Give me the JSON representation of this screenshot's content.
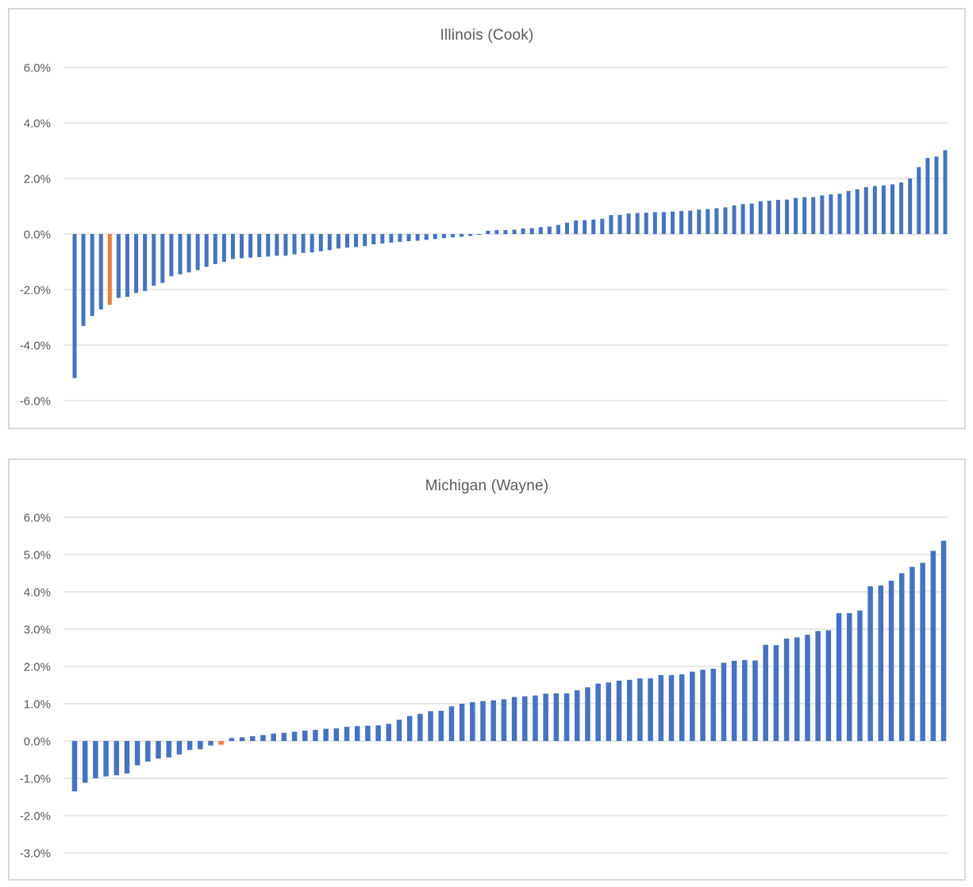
{
  "page": {
    "background_color": "#ffffff",
    "text_color": "#595959",
    "gridline_color": "#d9d9d9",
    "border_color": "#d9d9d9"
  },
  "chart_data": [
    {
      "type": "bar",
      "title": "Illinois (Cook)",
      "xlabel": "",
      "ylabel": "",
      "legend": false,
      "grid": true,
      "y_ticks": [
        "6.0%",
        "4.0%",
        "2.0%",
        "0.0%",
        "-2.0%",
        "-4.0%",
        "-6.0%"
      ],
      "ylim_pct": [
        -6.0,
        6.0
      ],
      "bar_color": "#4472C4",
      "highlight_color": "#ED7D31",
      "highlight_index": 4,
      "values_pct": [
        -5.19,
        -3.31,
        -2.95,
        -2.72,
        -2.55,
        -2.3,
        -2.26,
        -2.12,
        -2.05,
        -1.86,
        -1.76,
        -1.52,
        -1.45,
        -1.38,
        -1.3,
        -1.18,
        -1.08,
        -1.0,
        -0.9,
        -0.87,
        -0.85,
        -0.83,
        -0.81,
        -0.78,
        -0.78,
        -0.73,
        -0.68,
        -0.66,
        -0.62,
        -0.58,
        -0.52,
        -0.49,
        -0.47,
        -0.43,
        -0.37,
        -0.34,
        -0.31,
        -0.28,
        -0.26,
        -0.24,
        -0.21,
        -0.18,
        -0.15,
        -0.12,
        -0.1,
        -0.07,
        -0.03,
        0.12,
        0.14,
        0.14,
        0.16,
        0.2,
        0.21,
        0.25,
        0.27,
        0.33,
        0.41,
        0.49,
        0.5,
        0.52,
        0.55,
        0.68,
        0.69,
        0.74,
        0.76,
        0.77,
        0.79,
        0.79,
        0.81,
        0.83,
        0.84,
        0.88,
        0.9,
        0.93,
        0.96,
        1.03,
        1.08,
        1.1,
        1.18,
        1.2,
        1.23,
        1.24,
        1.3,
        1.33,
        1.33,
        1.39,
        1.43,
        1.45,
        1.55,
        1.61,
        1.69,
        1.73,
        1.75,
        1.79,
        1.86,
        2.0,
        2.41,
        2.74,
        2.79,
        3.02
      ]
    },
    {
      "type": "bar",
      "title": "Michigan (Wayne)",
      "xlabel": "",
      "ylabel": "",
      "legend": false,
      "grid": true,
      "y_ticks": [
        "6.0%",
        "5.0%",
        "4.0%",
        "3.0%",
        "2.0%",
        "1.0%",
        "0.0%",
        "-1.0%",
        "-2.0%",
        "-3.0%"
      ],
      "ylim_pct": [
        -3.0,
        6.0
      ],
      "bar_color": "#4472C4",
      "highlight_color": "#ED7D31",
      "highlight_index": 14,
      "values_pct": [
        -1.35,
        -1.12,
        -1.0,
        -0.95,
        -0.92,
        -0.87,
        -0.65,
        -0.55,
        -0.47,
        -0.44,
        -0.36,
        -0.24,
        -0.22,
        -0.12,
        -0.1,
        0.08,
        0.1,
        0.13,
        0.16,
        0.2,
        0.22,
        0.25,
        0.28,
        0.3,
        0.33,
        0.34,
        0.38,
        0.4,
        0.41,
        0.42,
        0.46,
        0.57,
        0.67,
        0.73,
        0.8,
        0.81,
        0.93,
        1.0,
        1.04,
        1.07,
        1.09,
        1.12,
        1.18,
        1.2,
        1.22,
        1.27,
        1.28,
        1.28,
        1.36,
        1.44,
        1.54,
        1.57,
        1.62,
        1.64,
        1.68,
        1.68,
        1.77,
        1.77,
        1.79,
        1.86,
        1.91,
        1.94,
        2.1,
        2.15,
        2.17,
        2.16,
        2.58,
        2.57,
        2.75,
        2.78,
        2.85,
        2.95,
        2.97,
        3.43,
        3.43,
        3.5,
        4.15,
        4.17,
        4.3,
        4.5,
        4.67,
        4.78,
        5.1,
        5.37
      ]
    }
  ]
}
